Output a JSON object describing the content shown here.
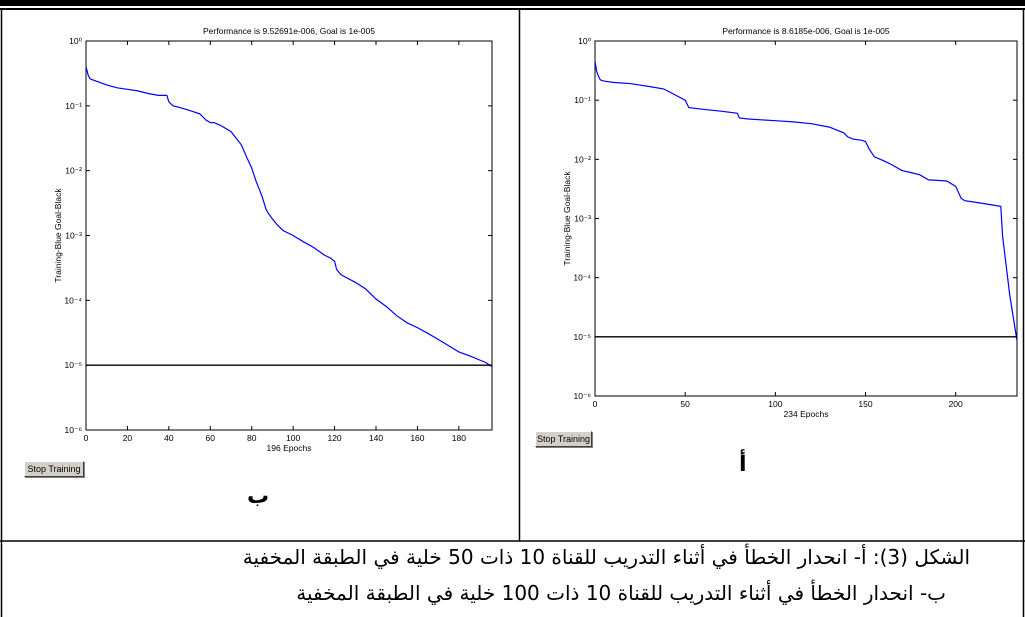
{
  "chart_data": [
    {
      "panel_letter": "ب",
      "type": "line",
      "title": "Performance is 9.52691e-006, Goal is 1e-005",
      "ylabel": "Training-Blue  Goal-Black",
      "xlabel": "196 Epochs",
      "xlim": [
        0,
        196
      ],
      "ylim": [
        1e-06,
        1
      ],
      "y_scale": "log",
      "x_ticks": [
        0,
        20,
        40,
        60,
        80,
        100,
        120,
        140,
        160,
        180
      ],
      "y_ticks": [
        1,
        0.1,
        0.01,
        0.001,
        0.0001,
        1e-05,
        1e-06
      ],
      "series": [
        {
          "color": "#0000ff",
          "x": [
            0,
            1,
            2,
            5,
            10,
            15,
            20,
            25,
            30,
            35,
            39,
            40,
            42,
            45,
            50,
            55,
            58,
            60,
            62,
            65,
            70,
            75,
            78,
            80,
            82,
            85,
            87,
            88,
            90,
            92,
            95,
            100,
            105,
            110,
            115,
            118,
            120,
            121,
            123,
            125,
            130,
            135,
            140,
            145,
            150,
            155,
            160,
            165,
            170,
            175,
            180,
            185,
            190,
            193,
            196
          ],
          "y": [
            0.4,
            0.3,
            0.26,
            0.24,
            0.21,
            0.19,
            0.18,
            0.17,
            0.155,
            0.145,
            0.145,
            0.115,
            0.1,
            0.095,
            0.085,
            0.075,
            0.06,
            0.055,
            0.055,
            0.05,
            0.04,
            0.025,
            0.015,
            0.011,
            0.007,
            0.004,
            0.0025,
            0.0022,
            0.0018,
            0.0015,
            0.0012,
            0.001,
            0.0008,
            0.00065,
            0.0005,
            0.00045,
            0.0004,
            0.0003,
            0.00025,
            0.00023,
            0.00019,
            0.00015,
            0.000105,
            8e-05,
            5.8e-05,
            4.5e-05,
            3.8e-05,
            3.1e-05,
            2.5e-05,
            2e-05,
            1.6e-05,
            1.4e-05,
            1.2e-05,
            1.1e-05,
            9.5e-06
          ]
        },
        {
          "color": "#000000",
          "x": [
            0,
            196
          ],
          "y": [
            1e-05,
            1e-05
          ]
        }
      ],
      "button_label": "Stop Training"
    },
    {
      "panel_letter": "أ",
      "type": "line",
      "title": "Performance is 8.6185e-006, Goal is 1e-005",
      "ylabel": "Training-Blue  Goal-Black",
      "xlabel": "234 Epochs",
      "xlim": [
        0,
        234
      ],
      "ylim": [
        1e-06,
        1
      ],
      "y_scale": "log",
      "x_ticks": [
        0,
        50,
        100,
        150,
        200
      ],
      "y_ticks": [
        1,
        0.1,
        0.01,
        0.001,
        0.0001,
        1e-05,
        1e-06
      ],
      "series": [
        {
          "color": "#0000ff",
          "x": [
            0,
            1,
            2,
            3,
            5,
            10,
            20,
            30,
            38,
            42,
            45,
            50,
            52,
            60,
            70,
            79,
            80,
            85,
            100,
            110,
            120,
            130,
            138,
            140,
            143,
            148,
            150,
            152,
            155,
            160,
            165,
            170,
            175,
            180,
            185,
            190,
            195,
            200,
            203,
            205,
            210,
            215,
            220,
            225,
            226,
            230,
            234
          ],
          "y": [
            0.45,
            0.3,
            0.25,
            0.22,
            0.21,
            0.2,
            0.19,
            0.17,
            0.155,
            0.135,
            0.12,
            0.1,
            0.075,
            0.07,
            0.065,
            0.06,
            0.05,
            0.048,
            0.045,
            0.043,
            0.04,
            0.035,
            0.028,
            0.024,
            0.022,
            0.021,
            0.02,
            0.015,
            0.011,
            0.0095,
            0.008,
            0.0065,
            0.006,
            0.0055,
            0.0045,
            0.0044,
            0.0043,
            0.0035,
            0.0022,
            0.002,
            0.0019,
            0.0018,
            0.0017,
            0.0016,
            0.0005,
            5e-05,
            8.6e-06
          ]
        },
        {
          "color": "#000000",
          "x": [
            0,
            234
          ],
          "y": [
            1e-05,
            1e-05
          ]
        }
      ],
      "button_label": "Stop Training"
    }
  ],
  "caption": {
    "line1": "الشكل (3): أ- انحدار الخطأ في أثناء التدريب للقناة 10 ذات 50 خلية في الطبقة المخفية",
    "line2": "ب- انحدار الخطأ في أثناء التدريب للقناة 10 ذات 100 خلية في الطبقة المخفية"
  },
  "colors": {
    "training": "#0000ff",
    "goal": "#000000",
    "button_face": "#d4d0c8",
    "frame": "#000000"
  }
}
